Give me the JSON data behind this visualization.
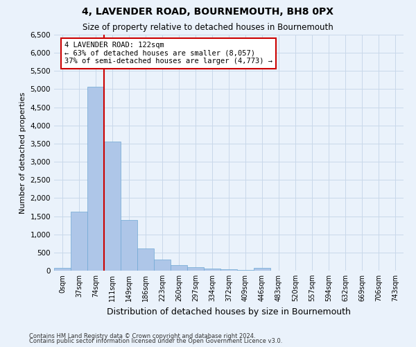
{
  "title": "4, LAVENDER ROAD, BOURNEMOUTH, BH8 0PX",
  "subtitle": "Size of property relative to detached houses in Bournemouth",
  "xlabel": "Distribution of detached houses by size in Bournemouth",
  "ylabel": "Number of detached properties",
  "bin_labels": [
    "0sqm",
    "37sqm",
    "74sqm",
    "111sqm",
    "149sqm",
    "186sqm",
    "223sqm",
    "260sqm",
    "297sqm",
    "334sqm",
    "372sqm",
    "409sqm",
    "446sqm",
    "483sqm",
    "520sqm",
    "557sqm",
    "594sqm",
    "632sqm",
    "669sqm",
    "706sqm",
    "743sqm"
  ],
  "bar_values": [
    70,
    1620,
    5060,
    3560,
    1400,
    620,
    300,
    155,
    90,
    55,
    30,
    15,
    75,
    0,
    0,
    0,
    0,
    0,
    0,
    0,
    0
  ],
  "bar_color": "#aec6e8",
  "bar_edge_color": "#6fa8d4",
  "property_line_bin": 3,
  "annotation_text": "4 LAVENDER ROAD: 122sqm\n← 63% of detached houses are smaller (8,057)\n37% of semi-detached houses are larger (4,773) →",
  "annotation_box_color": "#ffffff",
  "annotation_box_edge_color": "#cc0000",
  "vline_color": "#cc0000",
  "ylim": [
    0,
    6500
  ],
  "yticks": [
    0,
    500,
    1000,
    1500,
    2000,
    2500,
    3000,
    3500,
    4000,
    4500,
    5000,
    5500,
    6000,
    6500
  ],
  "grid_color": "#c8d8ea",
  "background_color": "#eaf2fb",
  "footer1": "Contains HM Land Registry data © Crown copyright and database right 2024.",
  "footer2": "Contains public sector information licensed under the Open Government Licence v3.0."
}
